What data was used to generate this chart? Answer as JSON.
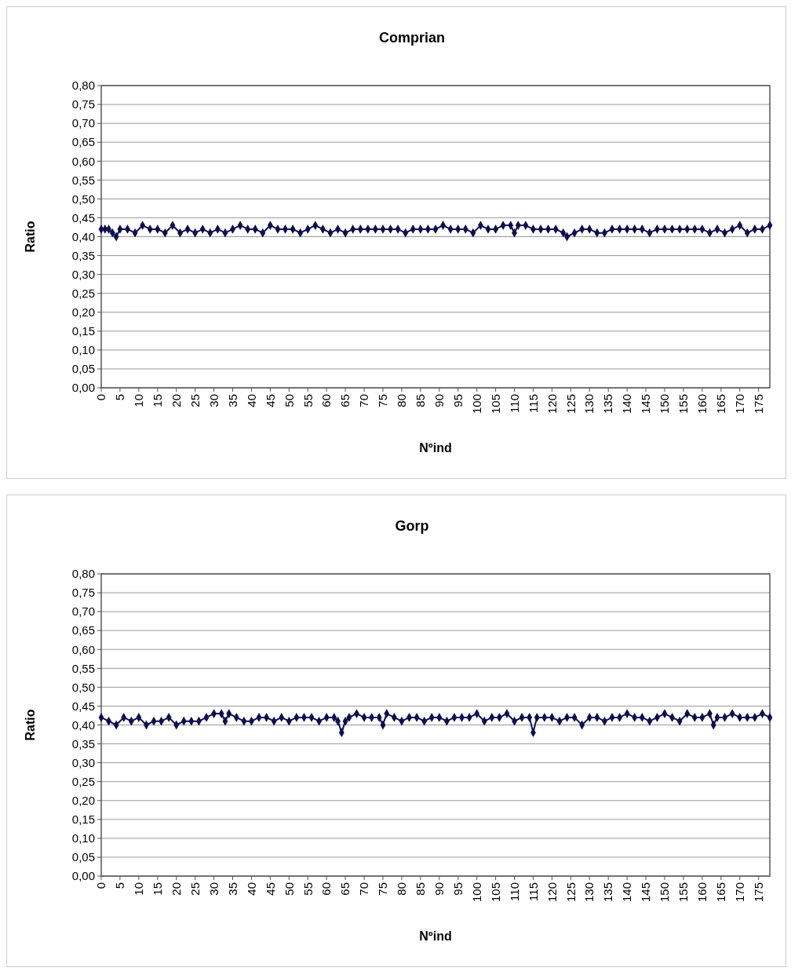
{
  "chart_data": [
    {
      "type": "line",
      "title": "Comprian",
      "xlabel": "Nºind",
      "ylabel": "Ratio",
      "marker": "diamond",
      "line_style": "solid",
      "grid": "y",
      "xlim": [
        0,
        178
      ],
      "xticks": [
        0,
        5,
        10,
        15,
        20,
        25,
        30,
        35,
        40,
        45,
        50,
        55,
        60,
        65,
        70,
        75,
        80,
        85,
        90,
        95,
        100,
        105,
        110,
        115,
        120,
        125,
        130,
        135,
        140,
        145,
        150,
        155,
        160,
        165,
        170,
        175
      ],
      "ylim": [
        0,
        0.8
      ],
      "yticks": [
        {
          "value": 0,
          "label": "0,00"
        },
        {
          "value": 0.05,
          "label": "0,05"
        },
        {
          "value": 0.1,
          "label": "0,10"
        },
        {
          "value": 0.15,
          "label": "0,15"
        },
        {
          "value": 0.2,
          "label": "0,20"
        },
        {
          "value": 0.25,
          "label": "0,25"
        },
        {
          "value": 0.3,
          "label": "0,30"
        },
        {
          "value": 0.35,
          "label": "0,35"
        },
        {
          "value": 0.4,
          "label": "0,40"
        },
        {
          "value": 0.45,
          "label": "0,45"
        },
        {
          "value": 0.5,
          "label": "0,50"
        },
        {
          "value": 0.55,
          "label": "0,55"
        },
        {
          "value": 0.6,
          "label": "0,60"
        },
        {
          "value": 0.65,
          "label": "0,65"
        },
        {
          "value": 0.7,
          "label": "0,70"
        },
        {
          "value": 0.75,
          "label": "0,75"
        },
        {
          "value": 0.8,
          "label": "0,80"
        }
      ],
      "series": [
        {
          "color": "#0d0d50",
          "x": [
            0,
            1,
            2,
            3,
            4,
            5,
            7,
            9,
            11,
            13,
            15,
            17,
            19,
            21,
            23,
            25,
            27,
            29,
            31,
            33,
            35,
            37,
            39,
            41,
            43,
            45,
            47,
            49,
            51,
            53,
            55,
            57,
            59,
            61,
            63,
            65,
            67,
            69,
            71,
            73,
            75,
            77,
            79,
            81,
            83,
            85,
            87,
            89,
            91,
            93,
            95,
            97,
            99,
            101,
            103,
            105,
            107,
            109,
            110,
            111,
            113,
            115,
            117,
            119,
            121,
            123,
            124,
            126,
            128,
            130,
            132,
            134,
            136,
            138,
            140,
            142,
            144,
            146,
            148,
            150,
            152,
            154,
            156,
            158,
            160,
            162,
            164,
            166,
            168,
            170,
            172,
            174,
            176,
            178
          ],
          "values": [
            0.42,
            0.42,
            0.42,
            0.41,
            0.4,
            0.42,
            0.42,
            0.41,
            0.43,
            0.42,
            0.42,
            0.41,
            0.43,
            0.41,
            0.42,
            0.41,
            0.42,
            0.41,
            0.42,
            0.41,
            0.42,
            0.43,
            0.42,
            0.42,
            0.41,
            0.43,
            0.42,
            0.42,
            0.42,
            0.41,
            0.42,
            0.43,
            0.42,
            0.41,
            0.42,
            0.41,
            0.42,
            0.42,
            0.42,
            0.42,
            0.42,
            0.42,
            0.42,
            0.41,
            0.42,
            0.42,
            0.42,
            0.42,
            0.43,
            0.42,
            0.42,
            0.42,
            0.41,
            0.43,
            0.42,
            0.42,
            0.43,
            0.43,
            0.41,
            0.43,
            0.43,
            0.42,
            0.42,
            0.42,
            0.42,
            0.41,
            0.4,
            0.41,
            0.42,
            0.42,
            0.41,
            0.41,
            0.42,
            0.42,
            0.42,
            0.42,
            0.42,
            0.41,
            0.42,
            0.42,
            0.42,
            0.42,
            0.42,
            0.42,
            0.42,
            0.41,
            0.42,
            0.41,
            0.42,
            0.43,
            0.41,
            0.42,
            0.42,
            0.43
          ]
        }
      ]
    },
    {
      "type": "line",
      "title": "Gorp",
      "xlabel": "Nºind",
      "ylabel": "Ratio",
      "marker": "diamond",
      "line_style": "solid",
      "grid": "y",
      "xlim": [
        0,
        178
      ],
      "xticks": [
        0,
        5,
        10,
        15,
        20,
        25,
        30,
        35,
        40,
        45,
        50,
        55,
        60,
        65,
        70,
        75,
        80,
        85,
        90,
        95,
        100,
        105,
        110,
        115,
        120,
        125,
        130,
        135,
        140,
        145,
        150,
        155,
        160,
        165,
        170,
        175
      ],
      "ylim": [
        0,
        0.8
      ],
      "yticks": [
        {
          "value": 0,
          "label": "0,00"
        },
        {
          "value": 0.05,
          "label": "0,05"
        },
        {
          "value": 0.1,
          "label": "0,10"
        },
        {
          "value": 0.15,
          "label": "0,15"
        },
        {
          "value": 0.2,
          "label": "0,20"
        },
        {
          "value": 0.25,
          "label": "0,25"
        },
        {
          "value": 0.3,
          "label": "0,30"
        },
        {
          "value": 0.35,
          "label": "0,35"
        },
        {
          "value": 0.4,
          "label": "0,40"
        },
        {
          "value": 0.45,
          "label": "0,45"
        },
        {
          "value": 0.5,
          "label": "0,50"
        },
        {
          "value": 0.55,
          "label": "0,55"
        },
        {
          "value": 0.6,
          "label": "0,60"
        },
        {
          "value": 0.65,
          "label": "0,65"
        },
        {
          "value": 0.7,
          "label": "0,70"
        },
        {
          "value": 0.75,
          "label": "0,75"
        },
        {
          "value": 0.8,
          "label": "0,80"
        }
      ],
      "series": [
        {
          "color": "#0d0d50",
          "x": [
            0,
            2,
            4,
            6,
            8,
            10,
            12,
            14,
            16,
            18,
            20,
            22,
            24,
            26,
            28,
            30,
            32,
            33,
            34,
            36,
            38,
            40,
            42,
            44,
            46,
            48,
            50,
            52,
            54,
            56,
            58,
            60,
            62,
            63,
            64,
            65,
            66,
            68,
            70,
            72,
            74,
            75,
            76,
            78,
            80,
            82,
            84,
            86,
            88,
            90,
            92,
            94,
            96,
            98,
            100,
            102,
            104,
            106,
            108,
            110,
            112,
            114,
            115,
            116,
            118,
            120,
            122,
            124,
            126,
            128,
            130,
            132,
            134,
            136,
            138,
            140,
            142,
            144,
            146,
            148,
            150,
            152,
            154,
            156,
            158,
            160,
            162,
            163,
            164,
            166,
            168,
            170,
            172,
            174,
            176,
            178
          ],
          "values": [
            0.42,
            0.41,
            0.4,
            0.42,
            0.41,
            0.42,
            0.4,
            0.41,
            0.41,
            0.42,
            0.4,
            0.41,
            0.41,
            0.41,
            0.42,
            0.43,
            0.43,
            0.41,
            0.43,
            0.42,
            0.41,
            0.41,
            0.42,
            0.42,
            0.41,
            0.42,
            0.41,
            0.42,
            0.42,
            0.42,
            0.41,
            0.42,
            0.42,
            0.41,
            0.38,
            0.41,
            0.42,
            0.43,
            0.42,
            0.42,
            0.42,
            0.4,
            0.43,
            0.42,
            0.41,
            0.42,
            0.42,
            0.41,
            0.42,
            0.42,
            0.41,
            0.42,
            0.42,
            0.42,
            0.43,
            0.41,
            0.42,
            0.42,
            0.43,
            0.41,
            0.42,
            0.42,
            0.38,
            0.42,
            0.42,
            0.42,
            0.41,
            0.42,
            0.42,
            0.4,
            0.42,
            0.42,
            0.41,
            0.42,
            0.42,
            0.43,
            0.42,
            0.42,
            0.41,
            0.42,
            0.43,
            0.42,
            0.41,
            0.43,
            0.42,
            0.42,
            0.43,
            0.4,
            0.42,
            0.42,
            0.43,
            0.42,
            0.42,
            0.42,
            0.43,
            0.42
          ]
        }
      ]
    }
  ]
}
